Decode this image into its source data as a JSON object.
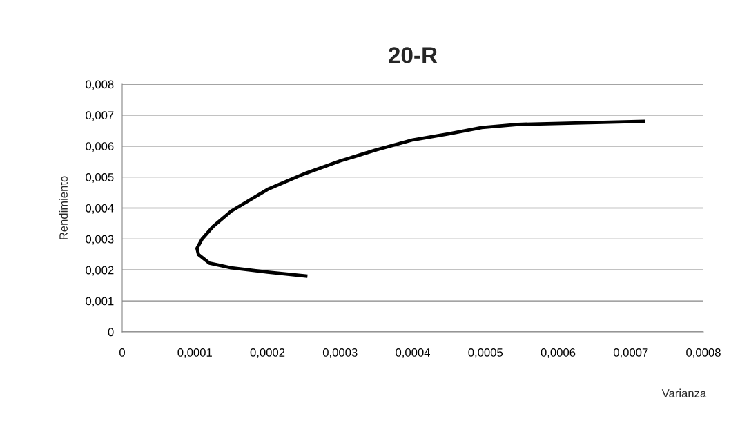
{
  "chart_data": {
    "type": "line",
    "title": "20-R",
    "xlabel": "Varianza",
    "ylabel": "Rendimiento",
    "series": [
      {
        "color": "#000000",
        "x": [
          0.000255,
          0.0002,
          0.00015,
          0.00012,
          0.000105,
          0.000103,
          0.00011,
          0.000125,
          0.00015,
          0.0002,
          0.00025,
          0.0003,
          0.00035,
          0.0004,
          0.00045,
          0.000495,
          0.000545,
          0.00072
        ],
        "values": [
          0.0018,
          0.00193,
          0.00207,
          0.00222,
          0.0025,
          0.0027,
          0.003,
          0.0034,
          0.0039,
          0.0046,
          0.0051,
          0.00552,
          0.00588,
          0.0062,
          0.0064,
          0.0066,
          0.0067,
          0.0068
        ]
      }
    ],
    "xlim": [
      0,
      0.0008
    ],
    "ylim": [
      0,
      0.008
    ],
    "xticks": [
      0,
      {
        "value": 0.0001,
        "label": "0,0001"
      },
      {
        "value": 0.0002,
        "label": "0,0002"
      },
      {
        "value": 0.0003,
        "label": "0,0003"
      },
      {
        "value": 0.0004,
        "label": "0,0004"
      },
      {
        "value": 0.0005,
        "label": "0,0005"
      },
      {
        "value": 0.0006,
        "label": "0,0006"
      },
      {
        "value": 0.0007,
        "label": "0,0007"
      },
      {
        "value": 0.0008,
        "label": "0,0008"
      }
    ],
    "yticks": [
      0,
      {
        "value": 0.001,
        "label": "0,001"
      },
      {
        "value": 0.002,
        "label": "0,002"
      },
      {
        "value": 0.003,
        "label": "0,003"
      },
      {
        "value": 0.004,
        "label": "0,004"
      },
      {
        "value": 0.005,
        "label": "0,005"
      },
      {
        "value": 0.006,
        "label": "0,006"
      },
      {
        "value": 0.007,
        "label": "0,007"
      },
      {
        "value": 0.008,
        "label": "0,008"
      }
    ],
    "grid": "y",
    "marker": "none",
    "line_style": "solid"
  }
}
